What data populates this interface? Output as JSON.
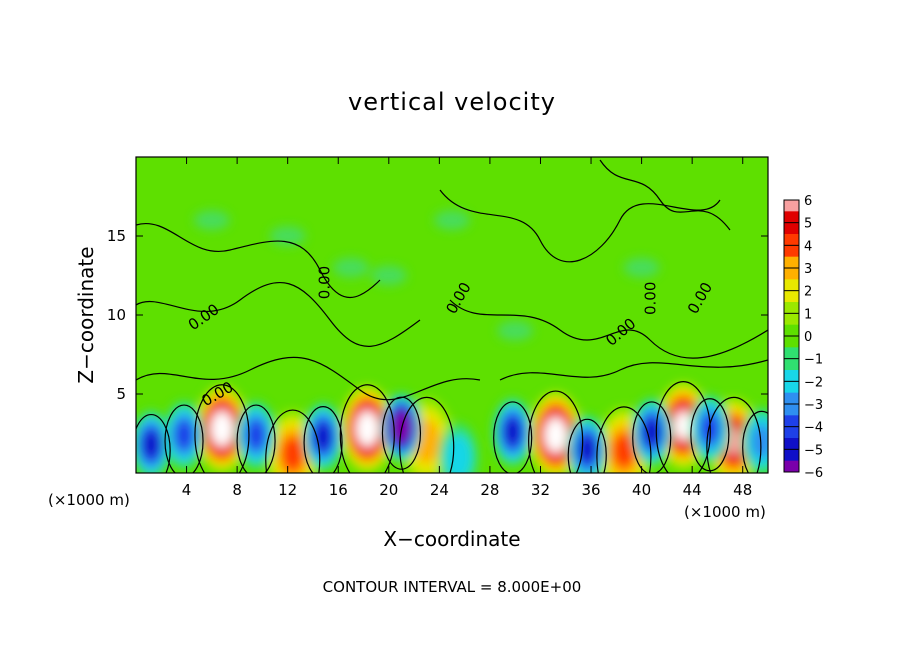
{
  "chart_data": {
    "type": "heatmap",
    "title": "vertical velocity",
    "xlabel": "X−coordinate",
    "ylabel": "Z−coordinate",
    "x_unit": "(×1000 m)",
    "x_unit_right": "(×1000 m)",
    "footer": "CONTOUR INTERVAL = 8.000E+00",
    "xlim": [
      0,
      50
    ],
    "ylim": [
      0,
      20
    ],
    "x_ticks": [
      "4",
      "8",
      "12",
      "16",
      "20",
      "24",
      "28",
      "32",
      "36",
      "40",
      "44",
      "48"
    ],
    "y_ticks": [
      "5",
      "10",
      "15"
    ],
    "colorbar": {
      "ticks": [
        "6",
        "5",
        "4",
        "3",
        "2",
        "1",
        "0",
        "−1",
        "−2",
        "−3",
        "−4",
        "−5",
        "−6"
      ],
      "range": [
        -6,
        6
      ]
    },
    "contour_labels": [
      "0.00",
      "0.00",
      "0.00",
      "0.00",
      "0.00",
      "0.00",
      "0.00"
    ],
    "grid": false,
    "updraft_cells": [
      {
        "x": 6.8,
        "z": 2.8,
        "peak": 9
      },
      {
        "x": 18.3,
        "z": 2.8,
        "peak": 14
      },
      {
        "x": 33.2,
        "z": 2.4,
        "peak": 12
      },
      {
        "x": 43.3,
        "z": 3.0,
        "peak": 7
      },
      {
        "x": 47.3,
        "z": 2.0,
        "peak": 6
      },
      {
        "x": 12.4,
        "z": 1.2,
        "peak": 4
      },
      {
        "x": 23.0,
        "z": 2.0,
        "peak": 3
      },
      {
        "x": 38.6,
        "z": 1.4,
        "peak": 4
      }
    ],
    "downdraft_cells": [
      {
        "x": 1.2,
        "z": 1.8,
        "peak": -5
      },
      {
        "x": 3.8,
        "z": 2.4,
        "peak": -4
      },
      {
        "x": 9.5,
        "z": 2.4,
        "peak": -4
      },
      {
        "x": 14.8,
        "z": 2.3,
        "peak": -5
      },
      {
        "x": 21.0,
        "z": 2.9,
        "peak": -8
      },
      {
        "x": 25.5,
        "z": 1.0,
        "peak": -2
      },
      {
        "x": 29.8,
        "z": 2.6,
        "peak": -5
      },
      {
        "x": 35.7,
        "z": 1.5,
        "peak": -5
      },
      {
        "x": 40.8,
        "z": 2.6,
        "peak": -5
      },
      {
        "x": 45.4,
        "z": 2.8,
        "peak": -4
      },
      {
        "x": 49.5,
        "z": 2.0,
        "peak": -3
      }
    ]
  }
}
